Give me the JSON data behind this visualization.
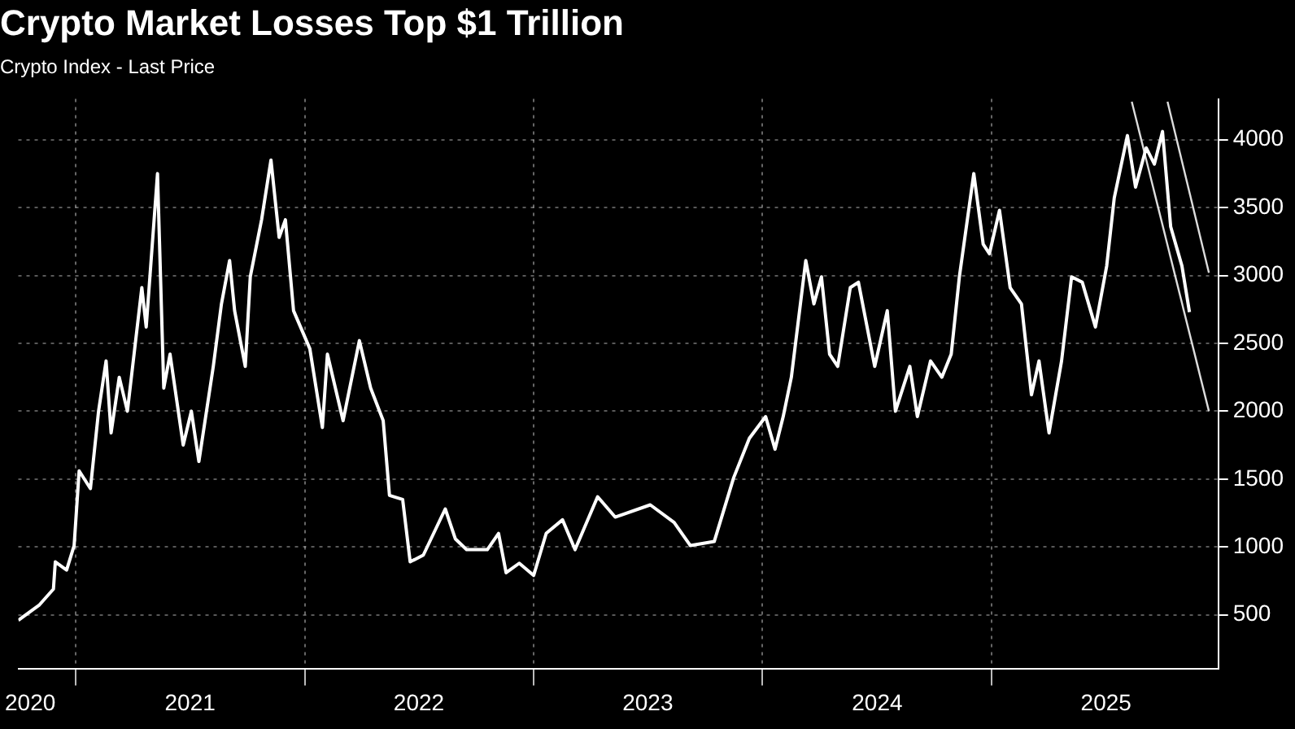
{
  "chart_data": {
    "type": "line",
    "title": "Crypto Market Losses Top $1 Trillion",
    "subtitle": "Crypto Index - Last Price",
    "x": [
      "2020-10-01",
      "2020-11-03",
      "2020-11-26",
      "2020-11-29",
      "2020-12-17",
      "2020-12-29",
      "2021-01-06",
      "2021-01-24",
      "2021-02-06",
      "2021-02-18",
      "2021-02-26",
      "2021-03-11",
      "2021-03-24",
      "2021-04-16",
      "2021-04-23",
      "2021-05-11",
      "2021-05-21",
      "2021-05-31",
      "2021-06-21",
      "2021-07-04",
      "2021-07-16",
      "2021-08-08",
      "2021-08-21",
      "2021-09-03",
      "2021-09-11",
      "2021-09-28",
      "2021-10-06",
      "2021-10-24",
      "2021-11-08",
      "2021-11-21",
      "2021-12-01",
      "2021-12-14",
      "2022-01-09",
      "2022-01-29",
      "2022-02-06",
      "2022-03-03",
      "2022-03-29",
      "2022-04-16",
      "2022-05-06",
      "2022-05-16",
      "2022-06-06",
      "2022-06-18",
      "2022-07-09",
      "2022-08-13",
      "2022-08-29",
      "2022-09-16",
      "2022-10-19",
      "2022-11-06",
      "2022-11-18",
      "2022-12-09",
      "2023-01-01",
      "2023-01-21",
      "2023-02-16",
      "2023-03-08",
      "2023-04-13",
      "2023-05-11",
      "2023-07-06",
      "2023-08-13",
      "2023-09-08",
      "2023-10-16",
      "2023-11-16",
      "2023-12-11",
      "2024-01-06",
      "2024-01-21",
      "2024-02-03",
      "2024-02-16",
      "2024-03-10",
      "2024-03-23",
      "2024-04-04",
      "2024-04-17",
      "2024-04-30",
      "2024-05-20",
      "2024-06-02",
      "2024-06-28",
      "2024-07-18",
      "2024-07-31",
      "2024-08-23",
      "2024-09-04",
      "2024-09-25",
      "2024-10-13",
      "2024-10-28",
      "2024-11-10",
      "2024-12-03",
      "2024-12-18",
      "2024-12-28",
      "2025-01-13",
      "2025-01-30",
      "2025-02-17",
      "2025-03-05",
      "2025-03-17",
      "2025-04-02",
      "2025-04-22",
      "2025-05-08",
      "2025-05-25",
      "2025-06-15",
      "2025-07-03",
      "2025-07-15",
      "2025-08-05",
      "2025-08-18",
      "2025-09-04",
      "2025-09-17",
      "2025-09-30",
      "2025-10-13",
      "2025-10-31",
      "2025-11-12"
    ],
    "series": [
      {
        "color": "#ffffff",
        "values": [
          460,
          570,
          690,
          890,
          830,
          1010,
          1560,
          1430,
          2000,
          2370,
          1840,
          2250,
          2000,
          2910,
          2620,
          3750,
          2170,
          2420,
          1750,
          2000,
          1630,
          2330,
          2790,
          3110,
          2740,
          2330,
          2990,
          3410,
          3850,
          3280,
          3410,
          2740,
          2460,
          1880,
          2420,
          1930,
          2520,
          2170,
          1930,
          1380,
          1350,
          890,
          940,
          1280,
          1060,
          980,
          980,
          1100,
          810,
          880,
          790,
          1100,
          1200,
          980,
          1370,
          1220,
          1310,
          1180,
          1010,
          1040,
          1510,
          1800,
          1960,
          1720,
          1960,
          2250,
          3110,
          2790,
          2990,
          2420,
          2330,
          2910,
          2950,
          2330,
          2740,
          2000,
          2330,
          1960,
          2370,
          2250,
          2420,
          2990,
          3750,
          3230,
          3160,
          3480,
          2910,
          2790,
          2120,
          2370,
          1840,
          2370,
          2990,
          2950,
          2620,
          3070,
          3570,
          4030,
          3650,
          3940,
          3820,
          4060,
          3360,
          3070,
          2730
        ]
      },
      {
        "type": "line",
        "color": "#dddddd",
        "x": [
          "2025-08-12",
          "2025-12-13"
        ],
        "values": [
          4280,
          2000
        ]
      },
      {
        "type": "line",
        "color": "#dddddd",
        "x": [
          "2025-10-08",
          "2025-12-13"
        ],
        "values": [
          4280,
          3020
        ]
      }
    ],
    "xlim": [
      "2020-10-01",
      "2025-12-28"
    ],
    "xticks": [
      {
        "value": "2020-10-20",
        "label": "2020"
      },
      {
        "value": "2021-01-01",
        "label": null
      },
      {
        "value": "2021-07-02",
        "label": "2021"
      },
      {
        "value": "2022-01-01",
        "label": null
      },
      {
        "value": "2022-07-02",
        "label": "2022"
      },
      {
        "value": "2023-01-01",
        "label": null
      },
      {
        "value": "2023-07-02",
        "label": "2023"
      },
      {
        "value": "2024-01-01",
        "label": null
      },
      {
        "value": "2024-07-02",
        "label": "2024"
      },
      {
        "value": "2025-01-01",
        "label": null
      },
      {
        "value": "2025-07-02",
        "label": "2025"
      }
    ],
    "ylim": [
      100,
      4300
    ],
    "yticks": [
      500,
      1000,
      1500,
      2000,
      2500,
      3000,
      3500,
      4000
    ],
    "grid": true,
    "marker": "none",
    "line_style": "solid"
  }
}
